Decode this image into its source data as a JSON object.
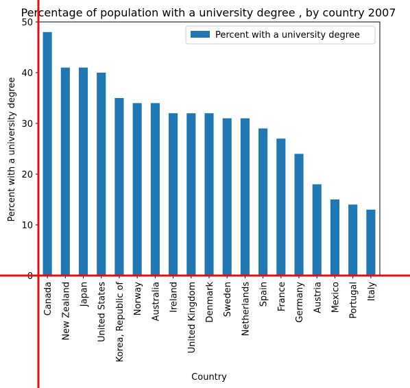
{
  "chart_data": {
    "type": "bar",
    "title": "Percentage of population with a university degree , by country 2007",
    "xlabel": "Country",
    "ylabel": "Percent with a university degree",
    "ylim": [
      0,
      50
    ],
    "yticks": [
      0,
      10,
      20,
      30,
      40,
      50
    ],
    "categories": [
      "Canada",
      "New Zealand",
      "Japan",
      "United States",
      "Korea, Republic of",
      "Norway",
      "Australia",
      "Ireland",
      "United Kingdom",
      "Denmark",
      "Sweden",
      "Netherlands",
      "Spain",
      "France",
      "Germany",
      "Austria",
      "Mexico",
      "Portugal",
      "Italy"
    ],
    "series": [
      {
        "name": "Percent with a university degree",
        "values": [
          48,
          41,
          41,
          40,
          35,
          34,
          34,
          32,
          32,
          32,
          31,
          31,
          29,
          27,
          24,
          18,
          15,
          14,
          13
        ],
        "color": "#1f77b4"
      }
    ],
    "legend_position": "top-right",
    "grid": false
  },
  "overlay": {
    "crosshair_color": "#dd1111"
  }
}
